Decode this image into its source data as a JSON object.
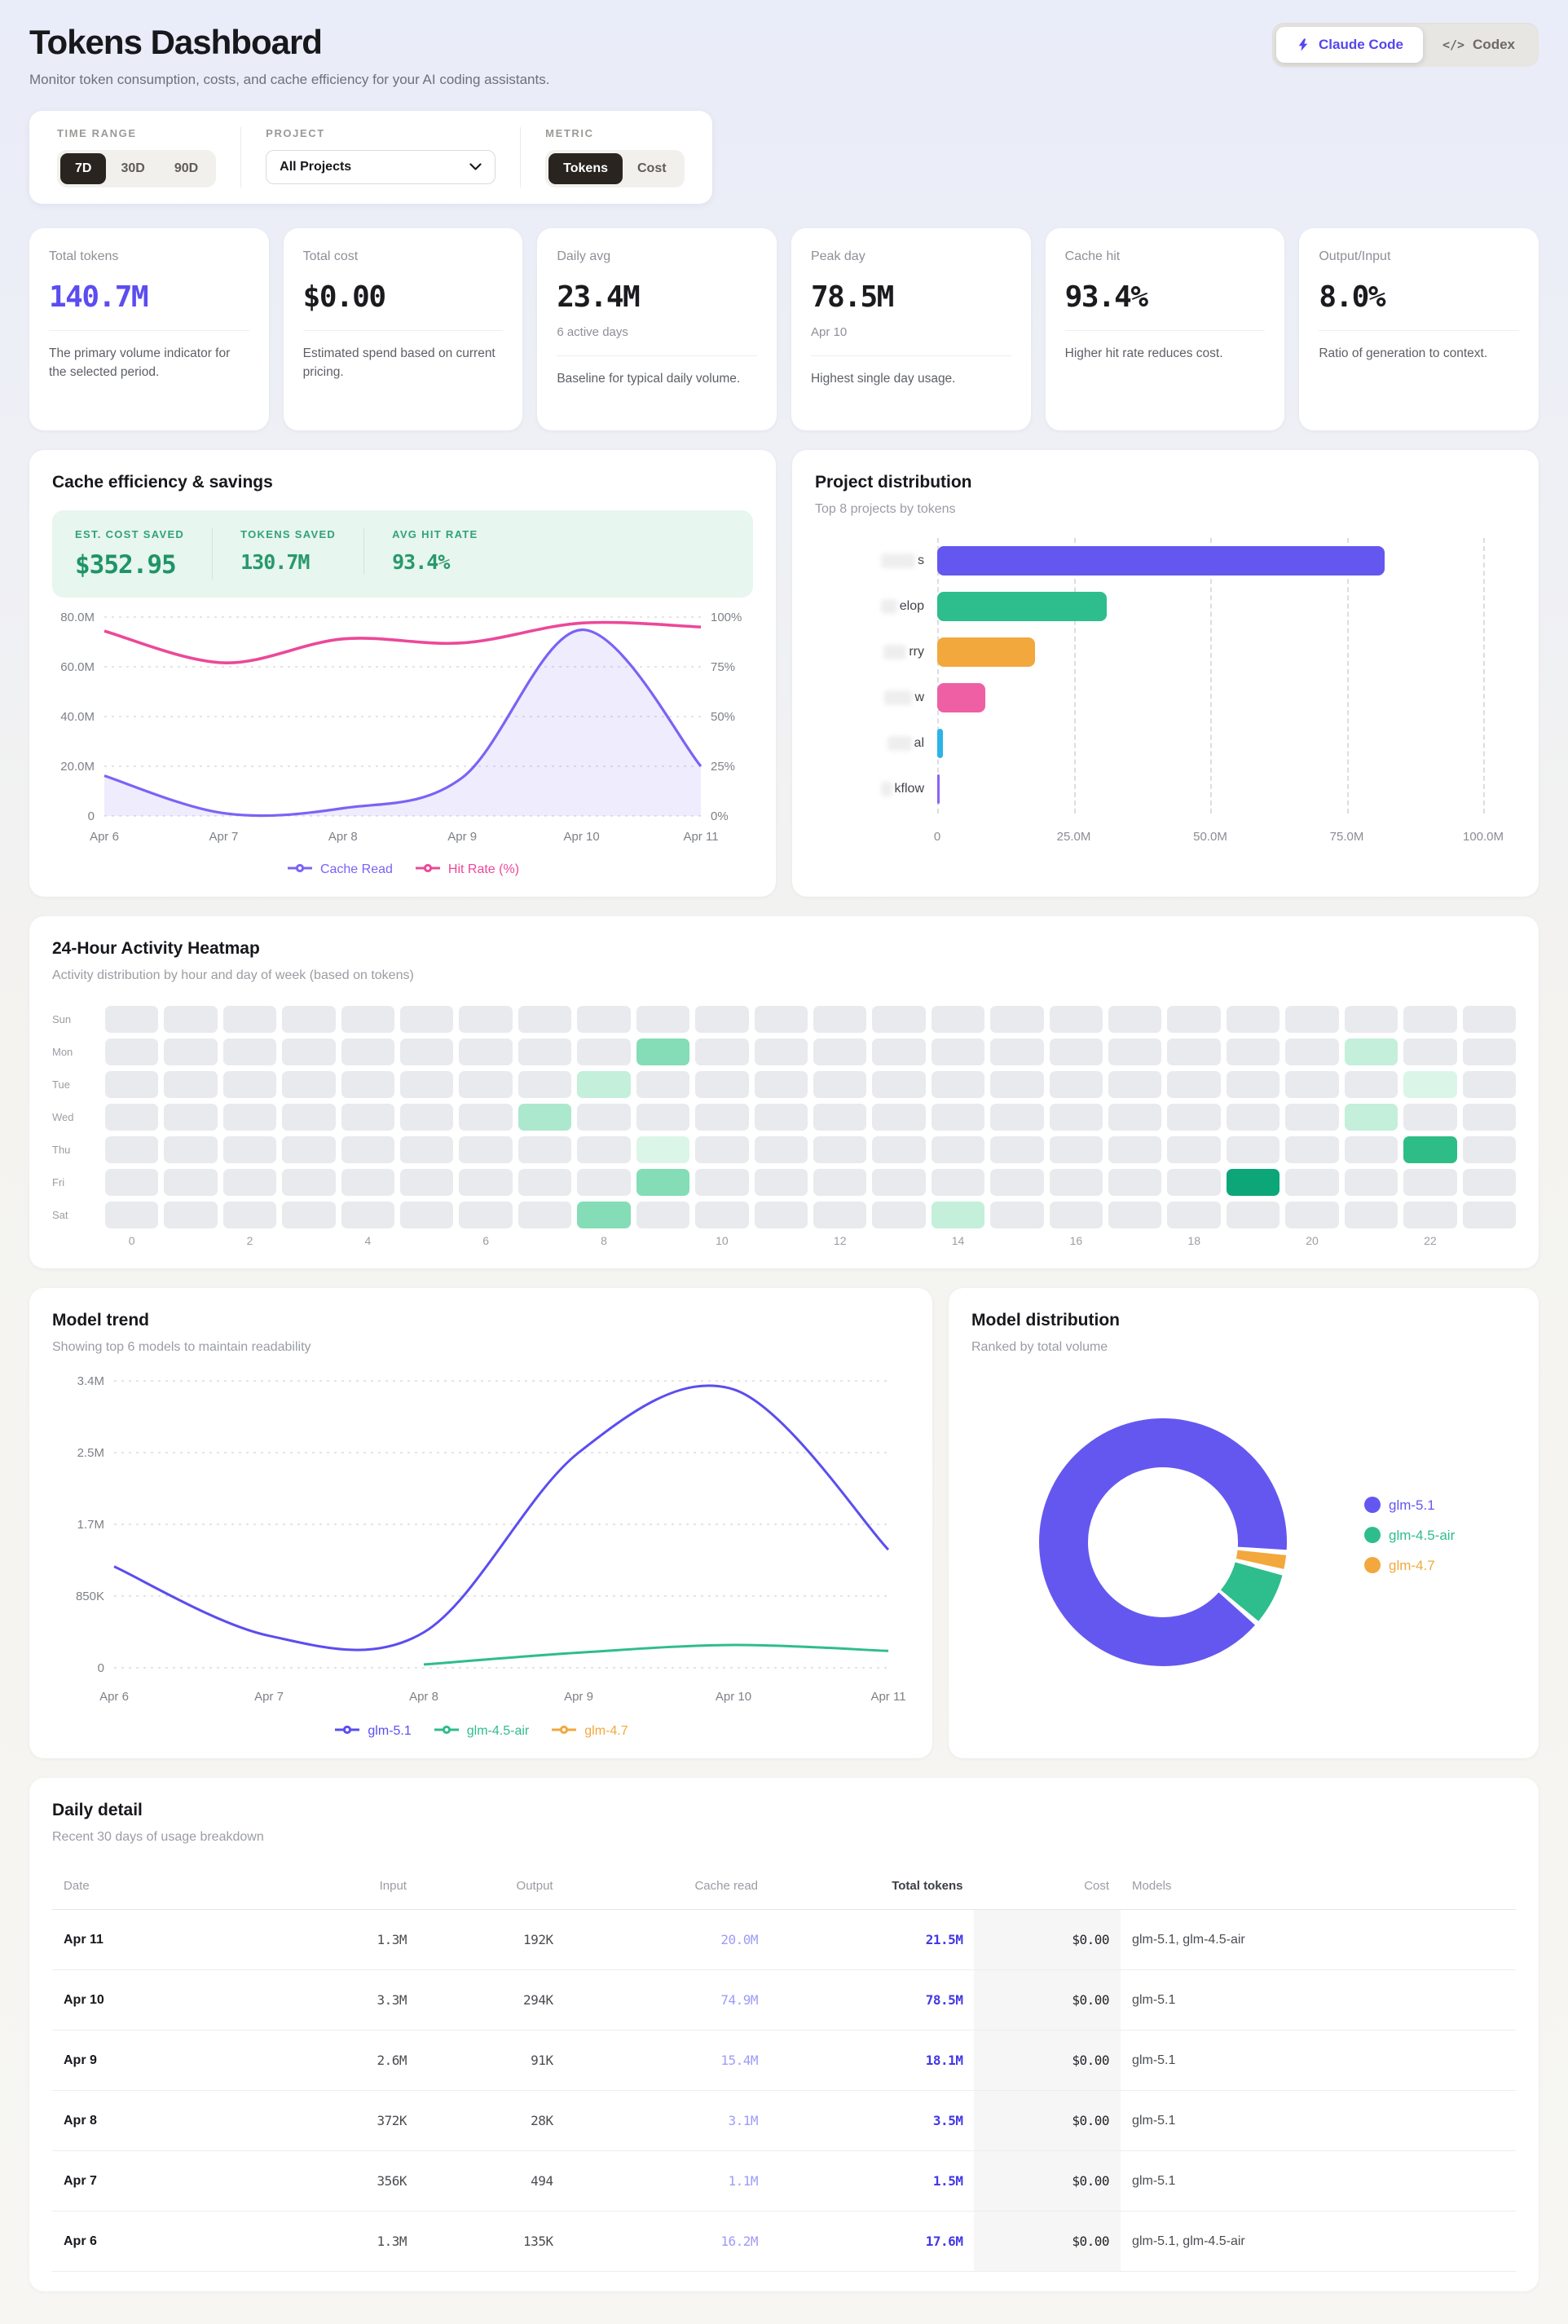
{
  "colors": {
    "accent_purple": "#5b4df0",
    "line_purple": "#7c62f5",
    "pink": "#ec4899",
    "green": "#2ebd8d",
    "orange": "#f2a83c",
    "blue": "#2cb3e8",
    "dark_button": "#29241f",
    "save_green": "#1f9467"
  },
  "header": {
    "title": "Tokens Dashboard",
    "subtitle": "Monitor token consumption, costs, and cache efficiency for your AI coding assistants.",
    "source_toggle": {
      "options": [
        {
          "label": "Claude Code",
          "icon": "bolt-icon",
          "active": true
        },
        {
          "label": "Codex",
          "icon": "code-icon",
          "active": false
        }
      ]
    }
  },
  "filters": {
    "time_range": {
      "label": "TIME RANGE",
      "options": [
        "7D",
        "30D",
        "90D"
      ],
      "selected": "7D"
    },
    "project": {
      "label": "PROJECT",
      "selected": "All Projects"
    },
    "metric": {
      "label": "METRIC",
      "options": [
        "Tokens",
        "Cost"
      ],
      "selected": "Tokens"
    }
  },
  "stats": [
    {
      "label": "Total tokens",
      "value": "140.7M",
      "accent": true,
      "sub": "",
      "desc": "The primary volume indicator for the selected period."
    },
    {
      "label": "Total cost",
      "value": "$0.00",
      "accent": false,
      "sub": "",
      "desc": "Estimated spend based on current pricing."
    },
    {
      "label": "Daily avg",
      "value": "23.4M",
      "accent": false,
      "sub": "6 active days",
      "desc": "Baseline for typical daily volume."
    },
    {
      "label": "Peak day",
      "value": "78.5M",
      "accent": false,
      "sub": "Apr 10",
      "desc": "Highest single day usage."
    },
    {
      "label": "Cache hit",
      "value": "93.4%",
      "accent": false,
      "sub": "",
      "desc": "Higher hit rate reduces cost."
    },
    {
      "label": "Output/Input",
      "value": "8.0%",
      "accent": false,
      "sub": "",
      "desc": "Ratio of generation to context."
    }
  ],
  "cache_card": {
    "title": "Cache efficiency & savings",
    "summary": [
      {
        "label": "EST. COST SAVED",
        "value": "$352.95",
        "big": true
      },
      {
        "label": "TOKENS SAVED",
        "value": "130.7M",
        "big": false
      },
      {
        "label": "AVG HIT RATE",
        "value": "93.4%",
        "big": false
      }
    ],
    "chart_data": {
      "type": "line",
      "x": [
        "Apr 6",
        "Apr 7",
        "Apr 8",
        "Apr 9",
        "Apr 10",
        "Apr 11"
      ],
      "series": [
        {
          "name": "Cache Read",
          "color": "#7c62f5",
          "axis": "left",
          "area": true,
          "values": [
            16200000,
            1100000,
            3100000,
            15400000,
            74900000,
            20000000
          ]
        },
        {
          "name": "Hit Rate (%)",
          "color": "#ec4899",
          "axis": "right",
          "area": false,
          "values": [
            93,
            77,
            89,
            87,
            97,
            95
          ]
        }
      ],
      "left_ticks": [
        "0",
        "20.0M",
        "40.0M",
        "60.0M",
        "80.0M"
      ],
      "right_ticks": [
        "0%",
        "25%",
        "50%",
        "75%",
        "100%"
      ],
      "left_max": 80000000,
      "right_max": 100,
      "grid": "dashed",
      "legend_position": "bottom"
    }
  },
  "project_card": {
    "title": "Project distribution",
    "subtitle": "Top 8 projects by tokens",
    "chart_data": {
      "type": "bar",
      "orientation": "horizontal",
      "x_max": 100000000,
      "x_ticks": [
        {
          "label": "0",
          "value": 0
        },
        {
          "label": "25.0M",
          "value": 25000000
        },
        {
          "label": "50.0M",
          "value": 50000000
        },
        {
          "label": "75.0M",
          "value": 75000000
        },
        {
          "label": "100.0M",
          "value": 100000000
        }
      ],
      "bars": [
        {
          "label_visible": "s",
          "redacted": true,
          "blur_w": 42,
          "value": 82000000,
          "color": "#6457f0"
        },
        {
          "label_visible": "elop",
          "redacted": true,
          "blur_w": 20,
          "value": 31000000,
          "color": "#2ebd8d"
        },
        {
          "label_visible": "rry",
          "redacted": true,
          "blur_w": 28,
          "value": 17900000,
          "color": "#f2a83c"
        },
        {
          "label_visible": "w",
          "redacted": true,
          "blur_w": 34,
          "value": 8800000,
          "color": "#ee5fa4"
        },
        {
          "label_visible": "al",
          "redacted": true,
          "blur_w": 30,
          "value": 1000000,
          "color": "#2cb3e8"
        },
        {
          "label_visible": "kflow",
          "redacted": true,
          "blur_w": 14,
          "value": 300000,
          "color": "#8a63f2"
        }
      ]
    }
  },
  "heatmap": {
    "title": "24-Hour Activity Heatmap",
    "subtitle": "Activity distribution by hour and day of week (based on tokens)",
    "days": [
      "Sun",
      "Mon",
      "Tue",
      "Wed",
      "Thu",
      "Fri",
      "Sat"
    ],
    "hours": 24,
    "hour_labels": [
      "0",
      "2",
      "4",
      "6",
      "8",
      "10",
      "12",
      "14",
      "16",
      "18",
      "20",
      "22"
    ],
    "level_colors": {
      "0": "#e9eaee",
      "1": "#dcf5e9",
      "2": "#c3efdb",
      "3": "#abe8cd",
      "4": "#84ddb6",
      "5": "#2fbd87",
      "6": "#0ca678"
    },
    "cells": [
      {
        "day": "Mon",
        "hour": 9,
        "level": 4
      },
      {
        "day": "Mon",
        "hour": 21,
        "level": 2
      },
      {
        "day": "Tue",
        "hour": 8,
        "level": 2
      },
      {
        "day": "Tue",
        "hour": 22,
        "level": 1
      },
      {
        "day": "Wed",
        "hour": 7,
        "level": 3
      },
      {
        "day": "Wed",
        "hour": 21,
        "level": 2
      },
      {
        "day": "Thu",
        "hour": 9,
        "level": 1
      },
      {
        "day": "Thu",
        "hour": 22,
        "level": 5
      },
      {
        "day": "Fri",
        "hour": 9,
        "level": 4
      },
      {
        "day": "Fri",
        "hour": 19,
        "level": 6
      },
      {
        "day": "Sat",
        "hour": 8,
        "level": 4
      },
      {
        "day": "Sat",
        "hour": 14,
        "level": 2
      }
    ]
  },
  "model_trend": {
    "title": "Model trend",
    "subtitle": "Showing top 6 models to maintain readability",
    "chart_data": {
      "type": "line",
      "x": [
        "Apr 6",
        "Apr 7",
        "Apr 8",
        "Apr 9",
        "Apr 10",
        "Apr 11"
      ],
      "y_ticks": [
        "0",
        "850K",
        "1.7M",
        "2.5M",
        "3.4M"
      ],
      "y_max": 3400000,
      "grid": "dashed",
      "legend_position": "bottom",
      "series": [
        {
          "name": "glm-5.1",
          "color": "#5b4df0",
          "values": [
            1200000,
            380000,
            420000,
            2550000,
            3300000,
            1400000
          ]
        },
        {
          "name": "glm-4.5-air",
          "color": "#2ebd8d",
          "values": [
            null,
            null,
            40000,
            180000,
            270000,
            200000
          ]
        },
        {
          "name": "glm-4.7",
          "color": "#f2a83c",
          "values": [
            null,
            null,
            null,
            null,
            null,
            null
          ]
        }
      ]
    }
  },
  "model_distribution": {
    "title": "Model distribution",
    "subtitle": "Ranked by total volume",
    "chart_data": {
      "type": "pie",
      "donut": true,
      "legend_position": "right",
      "slices": [
        {
          "name": "glm-5.1",
          "color": "#6457f0",
          "pct": 93.5,
          "start_deg": 132,
          "end_deg": 453.5
        },
        {
          "name": "glm-4.5-air",
          "color": "#2ebd8d",
          "pct": 4.8,
          "start_deg": 105.5,
          "end_deg": 129.5
        },
        {
          "name": "glm-4.7",
          "color": "#f2a83c",
          "pct": 1.7,
          "start_deg": 96,
          "end_deg": 102.5
        }
      ],
      "legend_order": [
        "glm-5.1",
        "glm-4.5-air",
        "glm-4.7"
      ]
    }
  },
  "daily_table": {
    "title": "Daily detail",
    "subtitle": "Recent 30 days of usage breakdown",
    "columns": [
      "Date",
      "Input",
      "Output",
      "Cache read",
      "Total tokens",
      "Cost",
      "Models"
    ],
    "rows": [
      [
        "Apr 11",
        "1.3M",
        "192K",
        "20.0M",
        "21.5M",
        "$0.00",
        "glm-5.1, glm-4.5-air"
      ],
      [
        "Apr 10",
        "3.3M",
        "294K",
        "74.9M",
        "78.5M",
        "$0.00",
        "glm-5.1"
      ],
      [
        "Apr 9",
        "2.6M",
        "91K",
        "15.4M",
        "18.1M",
        "$0.00",
        "glm-5.1"
      ],
      [
        "Apr 8",
        "372K",
        "28K",
        "3.1M",
        "3.5M",
        "$0.00",
        "glm-5.1"
      ],
      [
        "Apr 7",
        "356K",
        "494",
        "1.1M",
        "1.5M",
        "$0.00",
        "glm-5.1"
      ],
      [
        "Apr 6",
        "1.3M",
        "135K",
        "16.2M",
        "17.6M",
        "$0.00",
        "glm-5.1, glm-4.5-air"
      ]
    ]
  }
}
